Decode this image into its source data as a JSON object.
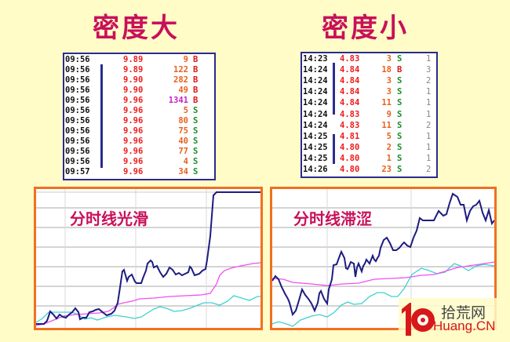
{
  "titles": {
    "left": "密度大",
    "right": "密度小"
  },
  "left_table": {
    "rows": [
      {
        "time": "09:56",
        "price": "9.89",
        "vol": "9",
        "side": "B"
      },
      {
        "time": "09:56",
        "price": "9.89",
        "vol": "122",
        "side": "B"
      },
      {
        "time": "09:56",
        "price": "9.90",
        "vol": "282",
        "side": "B"
      },
      {
        "time": "09:56",
        "price": "9.90",
        "vol": "49",
        "side": "B"
      },
      {
        "time": "09:56",
        "price": "9.96",
        "vol": "1341",
        "side": "B"
      },
      {
        "time": "09:56",
        "price": "9.96",
        "vol": "5",
        "side": "S"
      },
      {
        "time": "09:56",
        "price": "9.96",
        "vol": "80",
        "side": "S"
      },
      {
        "time": "09:56",
        "price": "9.96",
        "vol": "75",
        "side": "S"
      },
      {
        "time": "09:56",
        "price": "9.96",
        "vol": "40",
        "side": "S"
      },
      {
        "time": "09:56",
        "price": "9.96",
        "vol": "77",
        "side": "S"
      },
      {
        "time": "09:56",
        "price": "9.96",
        "vol": "4",
        "side": "S"
      },
      {
        "time": "09:57",
        "price": "9.96",
        "vol": "34",
        "side": "S"
      }
    ]
  },
  "right_table": {
    "rows": [
      {
        "time": "14:23",
        "price": "4.83",
        "vol": "3",
        "side": "S",
        "count": "1"
      },
      {
        "time": "14:24",
        "price": "4.84",
        "vol": "18",
        "side": "B",
        "count": "3"
      },
      {
        "time": "14:24",
        "price": "4.84",
        "vol": "3",
        "side": "S",
        "count": "2"
      },
      {
        "time": "14:24",
        "price": "4.84",
        "vol": "3",
        "side": "S",
        "count": "1"
      },
      {
        "time": "14:24",
        "price": "4.84",
        "vol": "11",
        "side": "S",
        "count": "1"
      },
      {
        "time": "14:24",
        "price": "4.83",
        "vol": "9",
        "side": "S",
        "count": "1"
      },
      {
        "time": "14:24",
        "price": "4.83",
        "vol": "11",
        "side": "S",
        "count": "2"
      },
      {
        "time": "14:25",
        "price": "4.81",
        "vol": "5",
        "side": "S",
        "count": "1"
      },
      {
        "time": "14:25",
        "price": "4.80",
        "vol": "2",
        "side": "S",
        "count": "1"
      },
      {
        "time": "14:25",
        "price": "4.80",
        "vol": "1",
        "side": "S",
        "count": "1"
      },
      {
        "time": "14:26",
        "price": "4.80",
        "vol": "23",
        "side": "S",
        "count": "2"
      }
    ]
  },
  "charts": {
    "left": {
      "label": "分时线光滑"
    },
    "right": {
      "label": "分时线滞涩"
    }
  },
  "colors": {
    "background": "#fffcc8",
    "title": "#c8105a",
    "price_line": "#1c1c80",
    "avg_line": "#f050f0",
    "cyan_line": "#40d0d0",
    "chart_border": "#f07020",
    "table_border": "#2b2b8f"
  },
  "logo": {
    "number": "10",
    "cn": "拾荒网",
    "en": "Huang.CN"
  }
}
